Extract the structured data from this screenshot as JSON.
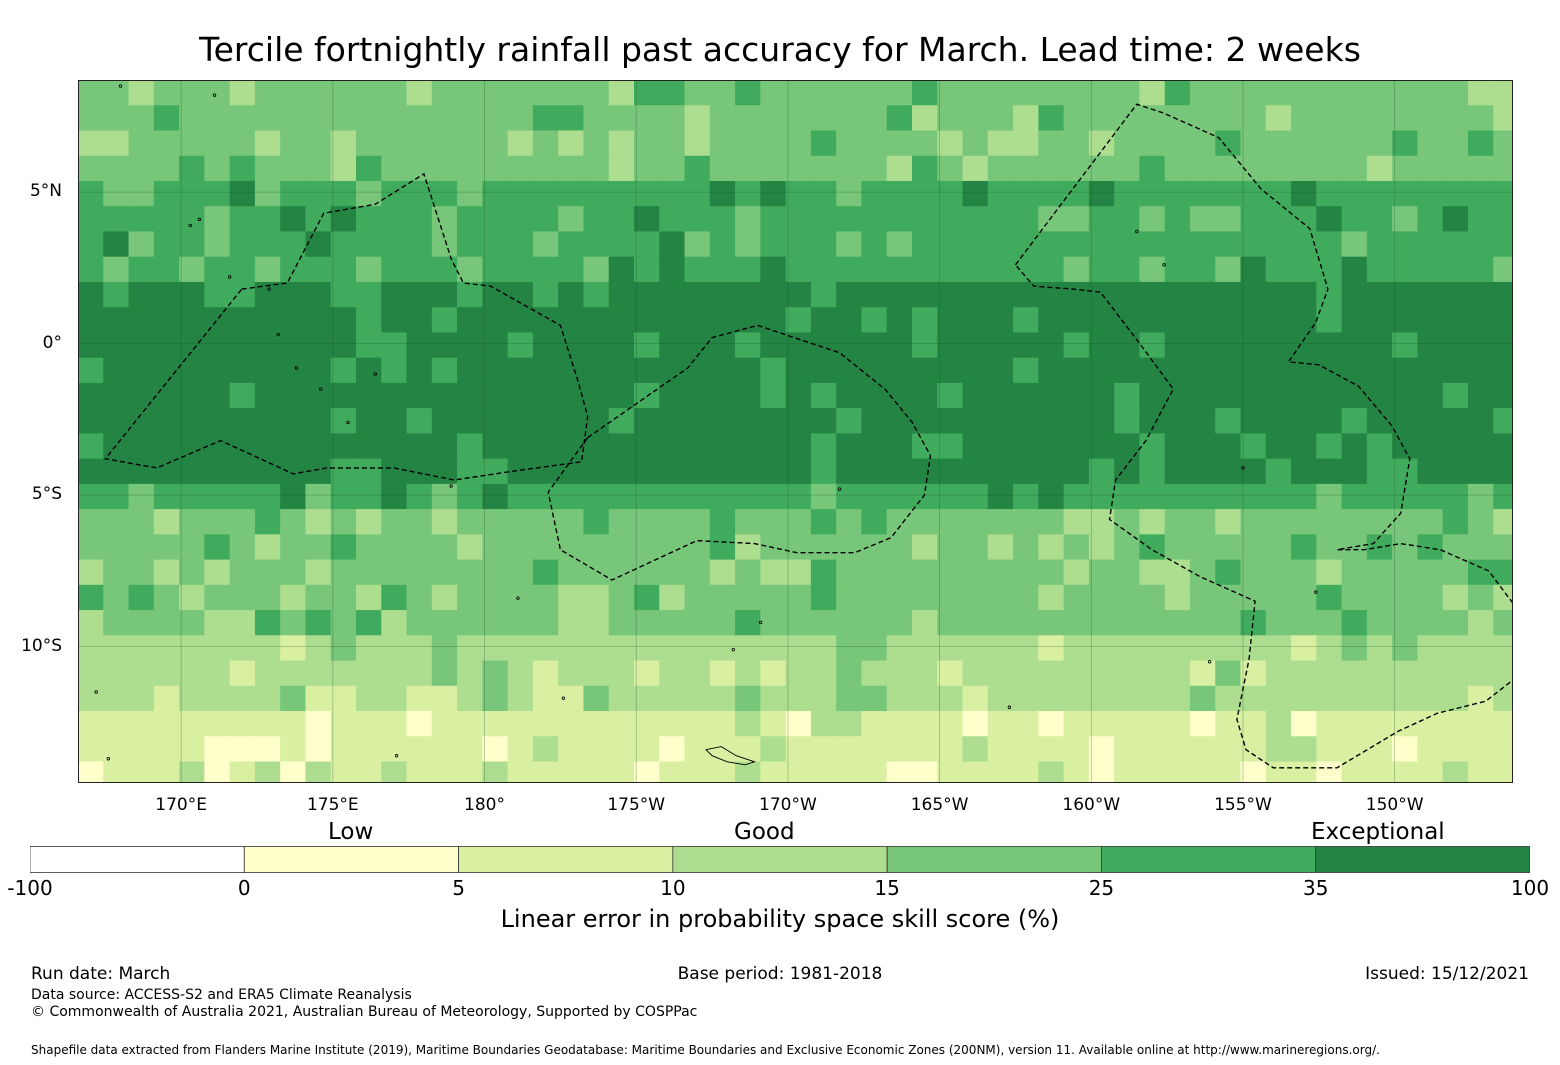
{
  "title": "Tercile fortnightly rainfall past accuracy for March. Lead time: 2 weeks",
  "map": {
    "lon_range": [
      166.6,
      213.9
    ],
    "lat_range": [
      -14.5,
      8.7
    ],
    "lat_ticks": [
      {
        "value": 5,
        "label": "5°N"
      },
      {
        "value": 0,
        "label": "0°"
      },
      {
        "value": -5,
        "label": "5°S"
      },
      {
        "value": -10,
        "label": "10°S"
      }
    ],
    "lon_ticks": [
      {
        "value": 170,
        "label": "170°E"
      },
      {
        "value": 175,
        "label": "175°E"
      },
      {
        "value": 180,
        "label": "180°"
      },
      {
        "value": 185,
        "label": "175°W"
      },
      {
        "value": 190,
        "label": "170°W"
      },
      {
        "value": 195,
        "label": "165°W"
      },
      {
        "value": 200,
        "label": "160°W"
      },
      {
        "value": 205,
        "label": "155°W"
      },
      {
        "value": 210,
        "label": "150°W"
      }
    ],
    "field": "Linear error in probability space skill score (%)",
    "skill_bands_by_latitude": [
      {
        "lat_max": 8.7,
        "lat_min": 5.5,
        "level": 4
      },
      {
        "lat_max": 5.5,
        "lat_min": 2.2,
        "level": 5
      },
      {
        "lat_max": 2.2,
        "lat_min": -4.5,
        "level": 6
      },
      {
        "lat_max": -4.5,
        "lat_min": -5.5,
        "level": 5
      },
      {
        "lat_max": -5.5,
        "lat_min": -10,
        "level": 4
      },
      {
        "lat_max": -10,
        "lat_min": -12,
        "level": 3
      },
      {
        "lat_max": -12,
        "lat_min": -14.5,
        "level": 2
      }
    ],
    "eez_zones": [
      [
        [
          172.0,
          1.8
        ],
        [
          173.5,
          2.0
        ],
        [
          174.7,
          4.3
        ],
        [
          176.4,
          4.6
        ],
        [
          178.0,
          5.6
        ],
        [
          178.9,
          2.8
        ],
        [
          179.3,
          2.0
        ],
        [
          180.2,
          1.9
        ],
        [
          182.5,
          0.6
        ],
        [
          183.1,
          -1.3
        ],
        [
          183.4,
          -2.4
        ],
        [
          183.2,
          -3.9
        ],
        [
          181.0,
          -4.2
        ],
        [
          179.0,
          -4.5
        ],
        [
          177.0,
          -4.1
        ],
        [
          174.8,
          -4.1
        ],
        [
          173.7,
          -4.3
        ],
        [
          171.3,
          -3.2
        ],
        [
          169.2,
          -4.1
        ],
        [
          167.5,
          -3.8
        ]
      ],
      [
        [
          183.4,
          -3.1
        ],
        [
          186.7,
          -0.8
        ],
        [
          187.5,
          0.2
        ],
        [
          189.0,
          0.6
        ],
        [
          191.7,
          -0.3
        ],
        [
          193.2,
          -1.5
        ],
        [
          194.1,
          -2.6
        ],
        [
          194.7,
          -3.7
        ],
        [
          194.5,
          -5.0
        ],
        [
          193.4,
          -6.4
        ],
        [
          192.2,
          -6.9
        ],
        [
          190.3,
          -6.9
        ],
        [
          188.9,
          -6.6
        ],
        [
          187.0,
          -6.5
        ],
        [
          184.2,
          -7.8
        ],
        [
          182.5,
          -6.8
        ],
        [
          182.1,
          -4.9
        ],
        [
          183.4,
          -3.1
        ]
      ],
      [
        [
          197.5,
          2.6
        ],
        [
          201.5,
          7.9
        ],
        [
          202.4,
          7.6
        ],
        [
          204.2,
          6.8
        ],
        [
          205.6,
          5.1
        ],
        [
          207.2,
          3.8
        ],
        [
          207.8,
          1.8
        ],
        [
          207.4,
          0.7
        ],
        [
          206.5,
          -0.6
        ],
        [
          207.5,
          -0.7
        ],
        [
          208.8,
          -1.4
        ],
        [
          209.9,
          -2.7
        ],
        [
          210.5,
          -3.8
        ],
        [
          210.2,
          -5.6
        ],
        [
          209.3,
          -6.6
        ],
        [
          208.1,
          -6.8
        ],
        [
          209.0,
          -6.8
        ],
        [
          210.2,
          -6.6
        ],
        [
          211.5,
          -6.8
        ],
        [
          213.1,
          -7.5
        ],
        [
          214.0,
          -8.7
        ],
        [
          214.2,
          -9.6
        ],
        [
          213.9,
          -11.1
        ],
        [
          213.0,
          -11.8
        ],
        [
          211.4,
          -12.2
        ],
        [
          210.1,
          -12.8
        ],
        [
          208.1,
          -14.0
        ],
        [
          206.0,
          -14.0
        ],
        [
          205.1,
          -13.4
        ],
        [
          204.8,
          -12.4
        ],
        [
          205.2,
          -10.4
        ],
        [
          205.4,
          -8.5
        ],
        [
          203.6,
          -7.7
        ],
        [
          202.0,
          -6.8
        ],
        [
          200.6,
          -5.8
        ],
        [
          200.8,
          -4.5
        ],
        [
          201.8,
          -3.2
        ],
        [
          202.7,
          -1.5
        ],
        [
          201.6,
          0.0
        ],
        [
          200.3,
          1.7
        ],
        [
          199.4,
          1.8
        ],
        [
          198.1,
          1.9
        ],
        [
          197.5,
          2.6
        ]
      ]
    ]
  },
  "colorbar": {
    "colors": [
      "#ffffff",
      "#ffffcc",
      "#d9f0a3",
      "#addd8e",
      "#78c679",
      "#41ab5d",
      "#238443"
    ],
    "ticks": [
      "-100",
      "0",
      "5",
      "10",
      "15",
      "25",
      "35",
      "100"
    ],
    "categories": [
      "Low",
      "Good",
      "Exceptional"
    ],
    "label": "Linear error in probability space skill score (%)"
  },
  "footer": {
    "run_date": "Run date: March",
    "base_period": "Base period: 1981-2018",
    "issued": "Issued: 15/12/2021",
    "data_source": "Data source: ACCESS-S2 and ERA5 Climate Reanalysis",
    "copyright": "© Commonwealth of Australia 2021, Australian Bureau of Meteorology, Supported by COSPPac",
    "shapefile": "Shapefile data extracted from Flanders Marine Institute (2019), Maritime Boundaries Geodatabase: Maritime Boundaries and Exclusive Economic Zones (200NM), version 11. Available online at http://www.marineregions.org/."
  }
}
